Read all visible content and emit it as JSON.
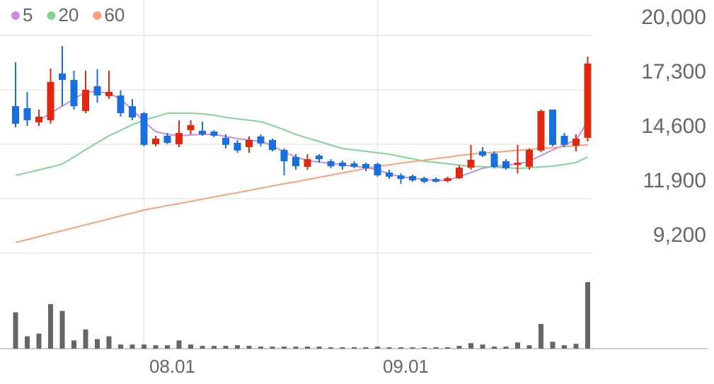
{
  "chart_data": {
    "type": "candlestick",
    "categories": [
      null,
      null,
      null,
      null,
      null,
      null,
      null,
      null,
      null,
      null,
      null,
      "08.01",
      null,
      null,
      null,
      null,
      null,
      null,
      null,
      null,
      null,
      null,
      null,
      null,
      null,
      null,
      null,
      null,
      null,
      null,
      null,
      "09.01",
      null,
      null,
      null,
      null,
      null,
      null,
      null,
      null,
      null,
      null,
      null,
      null,
      null,
      null,
      null,
      null,
      null,
      null
    ],
    "ohlc": {
      "open": [
        16490,
        16390,
        15690,
        15790,
        18110,
        17790,
        16250,
        17480,
        16990,
        17020,
        16490,
        16140,
        14600,
        15020,
        14600,
        15300,
        15270,
        15230,
        14920,
        14670,
        14460,
        14990,
        14810,
        14320,
        13970,
        13480,
        14040,
        13760,
        13690,
        13650,
        13620,
        13620,
        13200,
        13060,
        13020,
        12920,
        12880,
        12780,
        12920,
        13440,
        14250,
        14140,
        13760,
        13580,
        13480,
        14290,
        16320,
        15020,
        14530,
        14920
      ],
      "high": [
        18670,
        17200,
        16320,
        18350,
        19470,
        18250,
        18250,
        18320,
        18250,
        17270,
        16840,
        16210,
        15020,
        15160,
        15790,
        15790,
        15720,
        15300,
        15090,
        14810,
        14990,
        15090,
        14880,
        14390,
        14110,
        14110,
        14110,
        13860,
        13790,
        13760,
        13690,
        13690,
        13340,
        13160,
        13090,
        12990,
        12950,
        12990,
        13550,
        14570,
        14460,
        14250,
        13860,
        14570,
        14390,
        16320,
        16320,
        15160,
        15090,
        18950
      ],
      "low": [
        15440,
        15510,
        15510,
        15620,
        16490,
        16320,
        16140,
        16670,
        16840,
        15970,
        15790,
        14500,
        14500,
        14600,
        14460,
        15090,
        15020,
        14950,
        14390,
        14180,
        14180,
        14500,
        14250,
        13060,
        13340,
        13340,
        13690,
        13410,
        13340,
        13410,
        13270,
        12990,
        12880,
        12640,
        12740,
        12670,
        12710,
        12710,
        12880,
        13340,
        13970,
        13410,
        13340,
        13160,
        13340,
        14210,
        14500,
        14460,
        14250,
        14740
      ],
      "close": [
        15620,
        15790,
        15970,
        17690,
        17790,
        16490,
        17300,
        17020,
        17200,
        16140,
        15930,
        14570,
        14880,
        14670,
        15160,
        15550,
        15090,
        15020,
        14570,
        14290,
        14810,
        14640,
        14320,
        13760,
        13510,
        13860,
        13860,
        13510,
        13510,
        13480,
        13410,
        13060,
        12990,
        12880,
        12810,
        12740,
        12740,
        12920,
        13440,
        13830,
        14040,
        13480,
        13410,
        13690,
        14320,
        16250,
        14570,
        14570,
        14880,
        18600
      ]
    },
    "up_color": "#e0270f",
    "down_color": "#1a6fdf",
    "moving_averages": [
      {
        "name": "5",
        "color": "#c98ce3",
        "values": [
          null,
          null,
          15790,
          16140,
          16490,
          16840,
          17200,
          17200,
          17130,
          16840,
          16320,
          15720,
          15230,
          15090,
          15020,
          15060,
          15090,
          15090,
          14990,
          14880,
          14810,
          14740,
          14530,
          14210,
          13970,
          13790,
          13720,
          13650,
          13580,
          13510,
          13440,
          13340,
          13130,
          12990,
          12920,
          12850,
          12810,
          12810,
          12990,
          13200,
          13410,
          13510,
          13550,
          13620,
          13760,
          14040,
          14320,
          14570,
          14810,
          15720
        ]
      },
      {
        "name": "20",
        "color": "#82d493",
        "values": [
          13060,
          13190,
          13330,
          13470,
          13620,
          13970,
          14330,
          14680,
          15020,
          15290,
          15570,
          15790,
          15960,
          16140,
          16140,
          16140,
          16110,
          16040,
          15930,
          15860,
          15790,
          15720,
          15530,
          15320,
          15090,
          14910,
          14740,
          14560,
          14390,
          14320,
          14250,
          14180,
          14110,
          13990,
          13880,
          13760,
          13700,
          13630,
          13570,
          13510,
          13490,
          13460,
          13440,
          13410,
          13430,
          13480,
          13510,
          13600,
          13690,
          13970
        ]
      },
      {
        "name": "60",
        "color": "#f5a27c",
        "values": [
          9730,
          9870,
          10020,
          10170,
          10310,
          10460,
          10610,
          10750,
          10900,
          11050,
          11190,
          11340,
          11450,
          11560,
          11660,
          11770,
          11880,
          11990,
          12100,
          12200,
          12310,
          12420,
          12530,
          12640,
          12740,
          12850,
          12960,
          13070,
          13180,
          13290,
          13400,
          13510,
          13580,
          13660,
          13740,
          13810,
          13890,
          13960,
          14040,
          14110,
          14160,
          14200,
          14250,
          14300,
          14340,
          14390,
          14430,
          14480,
          14530,
          14570
        ]
      }
    ],
    "ylim": [
      9200,
      20000
    ],
    "yticks": [
      {
        "value": 9200,
        "label": "9,200"
      },
      {
        "value": 11900,
        "label": "11,900"
      },
      {
        "value": 14600,
        "label": "14,600"
      },
      {
        "value": 17300,
        "label": "17,300"
      },
      {
        "value": 20000,
        "label": "20,000"
      }
    ],
    "grid": true,
    "volume": {
      "color": "#666666",
      "ylim": [
        0,
        100
      ],
      "values": [
        53,
        18,
        22,
        65,
        55,
        12,
        28,
        14,
        18,
        6,
        6,
        6,
        5,
        5,
        12,
        6,
        4,
        4,
        4,
        5,
        4,
        3,
        3,
        3,
        3,
        3,
        3,
        2,
        2,
        2,
        2,
        3,
        2,
        2,
        2,
        2,
        2,
        2,
        4,
        8,
        6,
        3,
        3,
        9,
        5,
        36,
        10,
        5,
        7,
        97
      ]
    }
  }
}
